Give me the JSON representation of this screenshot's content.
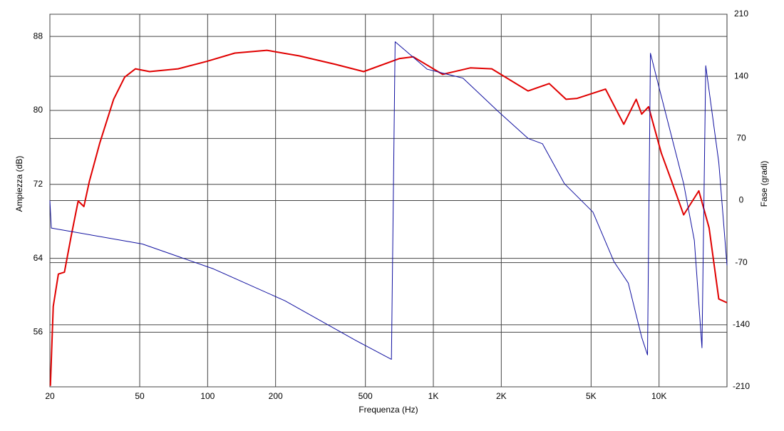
{
  "chart_data": {
    "type": "line",
    "xlabel": "Frequenza (Hz)",
    "ylabel": "Ampiezza (dB)",
    "y2label": "Fase (gradi)",
    "xlog": true,
    "grid": true,
    "xlim": [
      20,
      20000
    ],
    "xticks": [
      20,
      50,
      100,
      200,
      500,
      {
        "value": 1000,
        "label": "1K"
      },
      {
        "value": 2000,
        "label": "2K"
      },
      {
        "value": 5000,
        "label": "5K"
      },
      {
        "value": 10000,
        "label": "10K"
      }
    ],
    "ylim": [
      50.1,
      90.4
    ],
    "yticks": [
      56,
      64,
      72,
      80,
      88
    ],
    "y2lim": [
      -210,
      210
    ],
    "y2ticks": [
      -210,
      -140,
      -70,
      0,
      70,
      140,
      210
    ],
    "series": [
      {
        "color": "#e00000",
        "axis": "y",
        "x": [
          20.1,
          20.7,
          21.8,
          23.2,
          24.9,
          26.7,
          28.3,
          29.9,
          33.3,
          38.3,
          42.9,
          47.9,
          55.3,
          74,
          99,
          132,
          183,
          254,
          366,
          491,
          706,
          814,
          1099,
          1457,
          1815,
          2628,
          3262,
          3871,
          4339,
          5793,
          6977,
          7917,
          8374,
          8990,
          10231,
          11545,
          12850,
          15010,
          16660,
          18400,
          20000
        ],
        "values": [
          50.2,
          58.8,
          62.3,
          62.5,
          66.5,
          70.2,
          69.6,
          72.3,
          76.5,
          81.2,
          83.6,
          84.5,
          84.2,
          84.5,
          85.3,
          86.2,
          86.5,
          85.9,
          85.0,
          84.2,
          85.6,
          85.8,
          83.9,
          84.6,
          84.5,
          82.1,
          82.9,
          81.2,
          81.3,
          82.3,
          78.5,
          81.2,
          79.6,
          80.4,
          75.4,
          71.9,
          68.7,
          71.3,
          67.3,
          59.6,
          59.2
        ]
      },
      {
        "color": "#1010a0",
        "axis": "y2",
        "x": [
          20,
          20.3,
          51.4,
          106,
          220,
          455,
          652,
          677,
          940,
          1353,
          1946,
          2628,
          3044,
          3808,
          5095,
          6317,
          7306,
          8374,
          8890,
          9160,
          10080,
          12850,
          14340,
          15500,
          16100,
          18400,
          20000
        ],
        "values": [
          0,
          -31,
          -49,
          -77,
          -113,
          -158,
          -179,
          179,
          148,
          138,
          100,
          70,
          64,
          19,
          -13,
          -69,
          -93,
          -154,
          -174,
          166,
          124,
          19,
          -45,
          -166,
          152,
          43,
          -73
        ]
      }
    ]
  }
}
